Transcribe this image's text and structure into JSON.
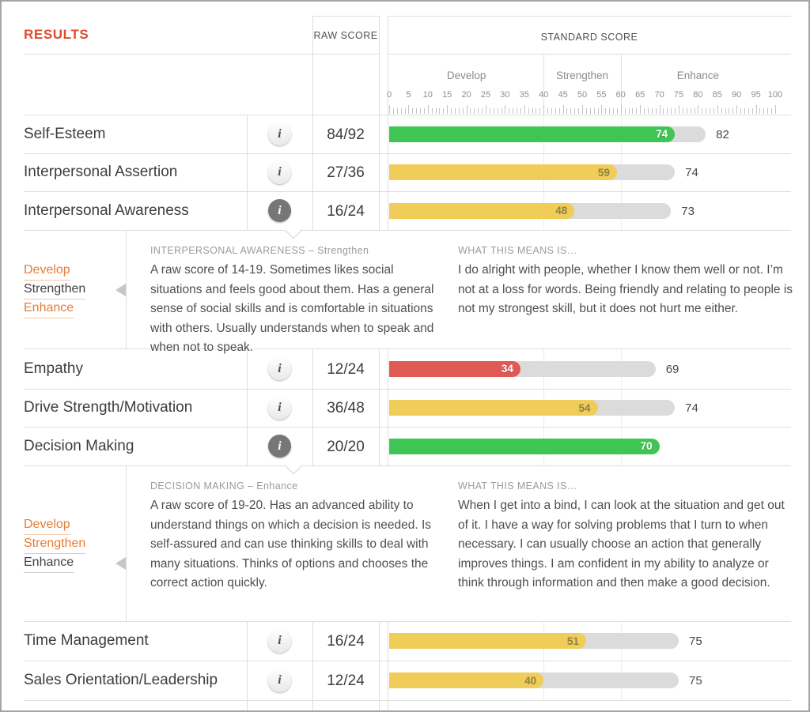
{
  "header": {
    "title": "RESULTS",
    "raw_score_label": "RAW SCORE",
    "standard_score_label": "STANDARD SCORE"
  },
  "scale": {
    "min": 0,
    "max": 100,
    "minor_tick_step": 1,
    "label_step": 5,
    "zones": [
      {
        "label": "Develop",
        "from": 0,
        "to": 40
      },
      {
        "label": "Strengthen",
        "from": 40,
        "to": 60
      },
      {
        "label": "Enhance",
        "from": 60,
        "to": 100
      }
    ]
  },
  "rows": [
    {
      "name": "Self-Esteem",
      "raw_score": "84/92",
      "standard_score": 74,
      "comparison_score": 82,
      "bar_color": "green",
      "info_active": false
    },
    {
      "name": "Interpersonal Assertion",
      "raw_score": "27/36",
      "standard_score": 59,
      "comparison_score": 74,
      "bar_color": "yellow",
      "info_active": false
    },
    {
      "name": "Interpersonal Awareness",
      "raw_score": "16/24",
      "standard_score": 48,
      "comparison_score": 73,
      "bar_color": "yellow",
      "info_active": true
    },
    {
      "name": "Empathy",
      "raw_score": "12/24",
      "standard_score": 34,
      "comparison_score": 69,
      "bar_color": "red",
      "info_active": false
    },
    {
      "name": "Drive Strength/Motivation",
      "raw_score": "36/48",
      "standard_score": 54,
      "comparison_score": 74,
      "bar_color": "yellow",
      "info_active": false
    },
    {
      "name": "Decision Making",
      "raw_score": "20/20",
      "standard_score": 70,
      "comparison_score": null,
      "bar_color": "green",
      "info_active": true
    },
    {
      "name": "Time Management",
      "raw_score": "16/24",
      "standard_score": 51,
      "comparison_score": 75,
      "bar_color": "yellow",
      "info_active": false
    },
    {
      "name": "Sales Orientation/Leadership",
      "raw_score": "12/24",
      "standard_score": 40,
      "comparison_score": 75,
      "bar_color": "yellow",
      "info_active": false
    }
  ],
  "panels": [
    {
      "heading": "INTERPERSONAL AWARENESS – Strengthen",
      "levels": [
        {
          "label": "Develop"
        },
        {
          "label": "Strengthen"
        },
        {
          "label": "Enhance"
        }
      ],
      "active_level": "Strengthen",
      "description": "A raw score of 14-19. Sometimes likes social situations and feels good about them. Has a general sense of social skills and is comfortable in situations with others. Usually understands when to speak and when not to speak.",
      "means_heading": "WHAT THIS MEANS IS…",
      "means_text": "I do alright with people, whether I know them well or not. I’m not at a loss for words. Being friendly and relating to people is not my strongest skill, but it does not hurt me either."
    },
    {
      "heading": "DECISION MAKING – Enhance",
      "levels": [
        {
          "label": "Develop"
        },
        {
          "label": "Strengthen"
        },
        {
          "label": "Enhance"
        }
      ],
      "active_level": "Enhance",
      "description": "A raw score of 19-20. Has an advanced ability to understand things on which a decision is needed. Is self-assured and can use thinking skills to deal with many situations. Thinks of options and chooses the correct action quickly.",
      "means_heading": "WHAT THIS MEANS IS…",
      "means_text": "When I get into a bind, I can look at the situation and get out of it. I have a way for solving problems that I turn to when necessary. I can usually choose an action that generally improves things. I am confident in my ability to analyze or think through information and then make a good decision."
    }
  ],
  "colors": {
    "accent_orange": "#e14b2e",
    "link_orange": "#e87c33",
    "bar_green": "#3ec553",
    "bar_yellow": "#f0cd58",
    "bar_red": "#e05a55",
    "bar_track": "#dbdbdb",
    "active_info_gray": "#767676"
  }
}
